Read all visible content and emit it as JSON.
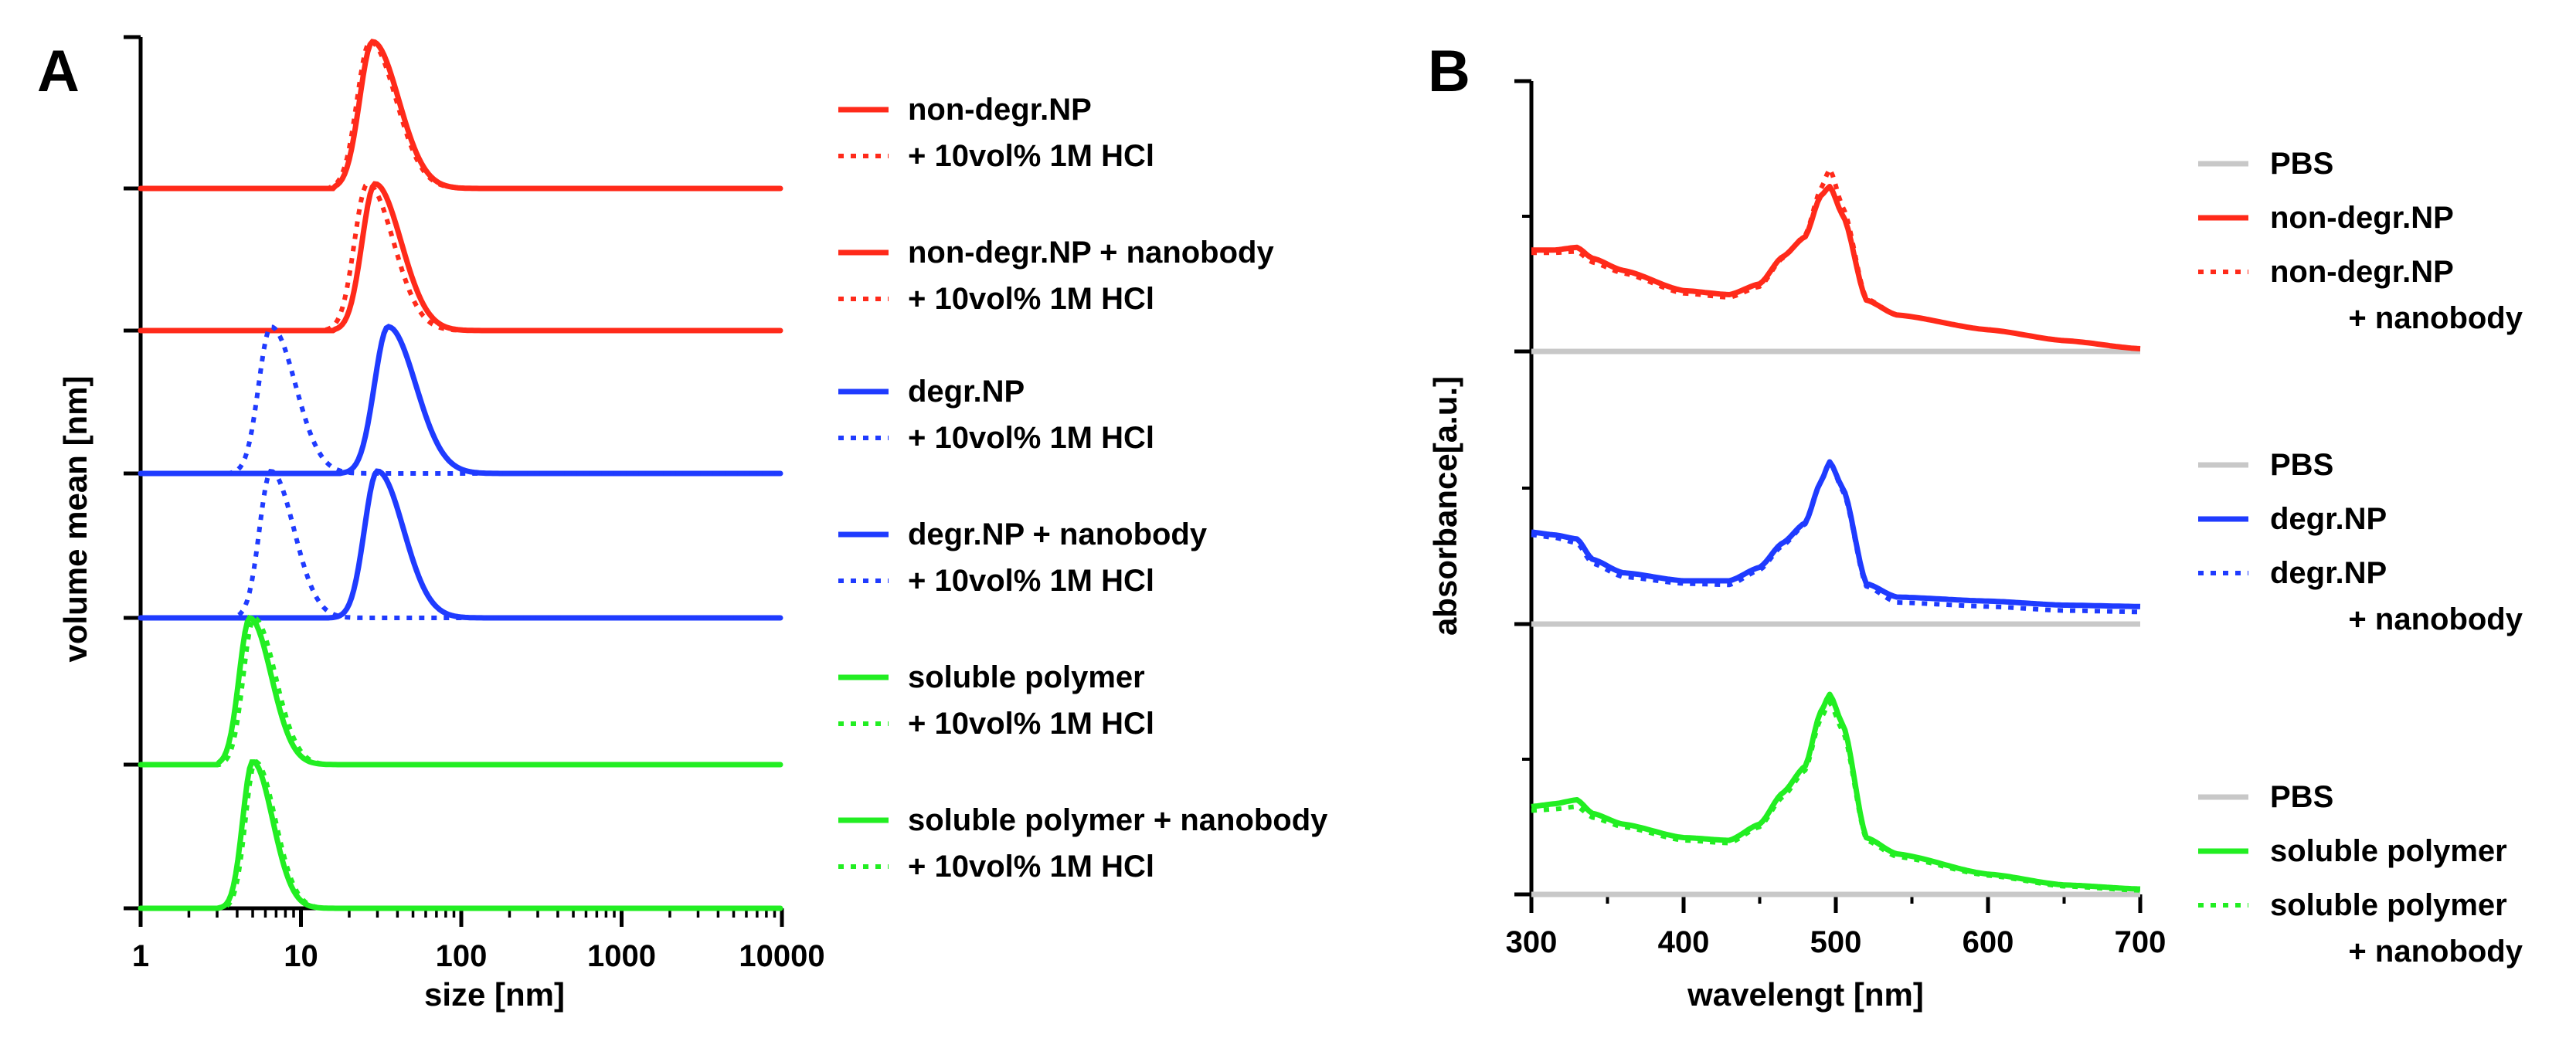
{
  "panels": {
    "A": {
      "label": "A",
      "xlabel": "size [nm]",
      "ylabel": "volume mean [nm]",
      "xticks": [
        "1",
        "10",
        "100",
        "1000",
        "10000"
      ],
      "legend": [
        {
          "solid": "non-degr.NP",
          "dotted": "+ 10vol% 1M HCl",
          "color": "#ff2a1a"
        },
        {
          "solid": "non-degr.NP + nanobody",
          "dotted": "+ 10vol% 1M HCl",
          "color": "#ff2a1a"
        },
        {
          "solid": "degr.NP",
          "dotted": "+ 10vol% 1M HCl",
          "color": "#1f3bff"
        },
        {
          "solid": "degr.NP + nanobody",
          "dotted": "+ 10vol% 1M HCl",
          "color": "#1f3bff"
        },
        {
          "solid": "soluble polymer",
          "dotted": "+ 10vol% 1M HCl",
          "color": "#22ee22"
        },
        {
          "solid": "soluble polymer + nanobody",
          "dotted": "+ 10vol% 1M HCl",
          "color": "#22ee22"
        }
      ]
    },
    "B": {
      "label": "B",
      "xlabel": "wavelengt [nm]",
      "ylabel": "absorbance[a.u.]",
      "xticks": [
        "300",
        "400",
        "500",
        "600",
        "700"
      ],
      "legend_groups": [
        {
          "pbs": "PBS",
          "solid": "non-degr.NP",
          "dotted": [
            "non-degr.NP",
            "+ nanobody"
          ],
          "color": "#ff2a1a",
          "pbs_color": "#c8c8c8"
        },
        {
          "pbs": "PBS",
          "solid": "degr.NP",
          "dotted": [
            "degr.NP",
            "+ nanobody"
          ],
          "color": "#1f3bff",
          "pbs_color": "#c8c8c8"
        },
        {
          "pbs": "PBS",
          "solid": "soluble polymer",
          "dotted": [
            "soluble polymer",
            "+ nanobody"
          ],
          "color": "#22ee22",
          "pbs_color": "#c8c8c8"
        }
      ]
    }
  },
  "chart_data": [
    {
      "panel": "A",
      "type": "line",
      "title": "",
      "xlabel": "size [nm]",
      "ylabel": "volume mean [nm]",
      "xscale": "log",
      "xlim": [
        1,
        10000
      ],
      "note": "Six vertically offset size distributions (normalized volume). Each trace: peak center in nm, log-width, peak height 1.",
      "series": [
        {
          "name": "non-degr.NP",
          "style": "solid",
          "color": "#ff2a1a",
          "peak_nm": 28,
          "log_width": 0.17,
          "onset_nm": 16
        },
        {
          "name": "non-degr.NP + 10vol% 1M HCl",
          "style": "dotted",
          "color": "#ff2a1a",
          "peak_nm": 27,
          "log_width": 0.17,
          "onset_nm": 15
        },
        {
          "name": "non-degr.NP + nanobody",
          "style": "solid",
          "color": "#ff2a1a",
          "peak_nm": 29,
          "log_width": 0.17,
          "onset_nm": 16
        },
        {
          "name": "non-degr.NP + nanobody + 10vol% 1M HCl",
          "style": "dotted",
          "color": "#ff2a1a",
          "peak_nm": 26,
          "log_width": 0.17,
          "onset_nm": 14
        },
        {
          "name": "degr.NP",
          "style": "solid",
          "color": "#1f3bff",
          "peak_nm": 35,
          "log_width": 0.18,
          "onset_nm": 18
        },
        {
          "name": "degr.NP + 10vol% 1M HCl",
          "style": "dotted",
          "color": "#1f3bff",
          "peak_nm": 6.5,
          "log_width": 0.16,
          "onset_nm": 3.6
        },
        {
          "name": "degr.NP + nanobody",
          "style": "solid",
          "color": "#1f3bff",
          "peak_nm": 30,
          "log_width": 0.17,
          "onset_nm": 15
        },
        {
          "name": "degr.NP + nanobody + 10vol% 1M HCl",
          "style": "dotted",
          "color": "#1f3bff",
          "peak_nm": 6.5,
          "log_width": 0.15,
          "onset_nm": 3.8
        },
        {
          "name": "soluble polymer",
          "style": "solid",
          "color": "#22ee22",
          "peak_nm": 4.8,
          "log_width": 0.14,
          "onset_nm": 3.0
        },
        {
          "name": "soluble polymer + 10vol% 1M HCl",
          "style": "dotted",
          "color": "#22ee22",
          "peak_nm": 5.1,
          "log_width": 0.14,
          "onset_nm": 3.2
        },
        {
          "name": "soluble polymer + nanobody",
          "style": "solid",
          "color": "#22ee22",
          "peak_nm": 5.0,
          "log_width": 0.13,
          "onset_nm": 3.0
        },
        {
          "name": "soluble polymer + nanobody + 10vol% 1M HCl",
          "style": "dotted",
          "color": "#22ee22",
          "peak_nm": 5.2,
          "log_width": 0.13,
          "onset_nm": 3.2
        }
      ]
    },
    {
      "panel": "B",
      "type": "line",
      "title": "",
      "xlabel": "wavelengt [nm]",
      "ylabel": "absorbance[a.u.]",
      "xlim": [
        300,
        700
      ],
      "ylim_per_group": [
        0,
        2
      ],
      "note": "Three vertically offset groups; absorbance in arbitrary units relative to each group's PBS baseline.",
      "series": [
        {
          "name": "PBS (group 1)",
          "style": "solid",
          "color": "#c8c8c8",
          "x": [
            300,
            700
          ],
          "y": [
            0,
            0
          ]
        },
        {
          "name": "non-degr.NP",
          "style": "solid",
          "color": "#ff2a1a",
          "x": [
            300,
            315,
            330,
            340,
            360,
            400,
            430,
            450,
            465,
            480,
            490,
            496,
            505,
            520,
            540,
            600,
            650,
            700
          ],
          "y": [
            0.75,
            0.75,
            0.77,
            0.69,
            0.6,
            0.45,
            0.42,
            0.5,
            0.7,
            0.85,
            1.15,
            1.22,
            1.0,
            0.38,
            0.27,
            0.16,
            0.08,
            0.02
          ]
        },
        {
          "name": "non-degr.NP + nanobody",
          "style": "dotted",
          "color": "#ff2a1a",
          "x": [
            300,
            315,
            330,
            340,
            360,
            400,
            430,
            450,
            465,
            480,
            490,
            496,
            505,
            520,
            540,
            600,
            650,
            700
          ],
          "y": [
            0.73,
            0.73,
            0.74,
            0.66,
            0.58,
            0.43,
            0.4,
            0.48,
            0.69,
            0.86,
            1.2,
            1.35,
            1.06,
            0.39,
            0.27,
            0.16,
            0.08,
            0.02
          ]
        },
        {
          "name": "PBS (group 2)",
          "style": "solid",
          "color": "#c8c8c8",
          "x": [
            300,
            700
          ],
          "y": [
            0,
            0
          ]
        },
        {
          "name": "degr.NP",
          "style": "solid",
          "color": "#1f3bff",
          "x": [
            300,
            315,
            330,
            340,
            360,
            400,
            430,
            450,
            465,
            480,
            490,
            496,
            505,
            520,
            540,
            600,
            650,
            700
          ],
          "y": [
            0.68,
            0.66,
            0.63,
            0.48,
            0.38,
            0.32,
            0.32,
            0.42,
            0.6,
            0.75,
            1.05,
            1.2,
            1.0,
            0.3,
            0.2,
            0.17,
            0.14,
            0.13
          ]
        },
        {
          "name": "degr.NP + nanobody",
          "style": "dotted",
          "color": "#1f3bff",
          "x": [
            300,
            315,
            330,
            340,
            360,
            400,
            430,
            450,
            465,
            480,
            490,
            496,
            505,
            520,
            540,
            600,
            650,
            700
          ],
          "y": [
            0.66,
            0.64,
            0.6,
            0.45,
            0.35,
            0.3,
            0.29,
            0.4,
            0.58,
            0.74,
            1.05,
            1.2,
            0.98,
            0.28,
            0.16,
            0.13,
            0.1,
            0.09
          ]
        },
        {
          "name": "PBS (group 3)",
          "style": "solid",
          "color": "#c8c8c8",
          "x": [
            300,
            700
          ],
          "y": [
            0,
            0
          ]
        },
        {
          "name": "soluble polymer",
          "style": "solid",
          "color": "#22ee22",
          "x": [
            300,
            315,
            330,
            340,
            360,
            400,
            430,
            450,
            465,
            480,
            490,
            496,
            505,
            520,
            540,
            600,
            650,
            700
          ],
          "y": [
            0.65,
            0.67,
            0.7,
            0.6,
            0.52,
            0.42,
            0.4,
            0.52,
            0.75,
            0.95,
            1.35,
            1.48,
            1.25,
            0.42,
            0.3,
            0.15,
            0.07,
            0.04
          ]
        },
        {
          "name": "soluble polymer + nanobody",
          "style": "dotted",
          "color": "#22ee22",
          "x": [
            300,
            315,
            330,
            340,
            360,
            400,
            430,
            450,
            465,
            480,
            490,
            496,
            505,
            520,
            540,
            600,
            650,
            700
          ],
          "y": [
            0.62,
            0.63,
            0.65,
            0.57,
            0.5,
            0.4,
            0.38,
            0.5,
            0.72,
            0.92,
            1.3,
            1.42,
            1.2,
            0.4,
            0.28,
            0.14,
            0.06,
            0.03
          ]
        }
      ]
    }
  ]
}
